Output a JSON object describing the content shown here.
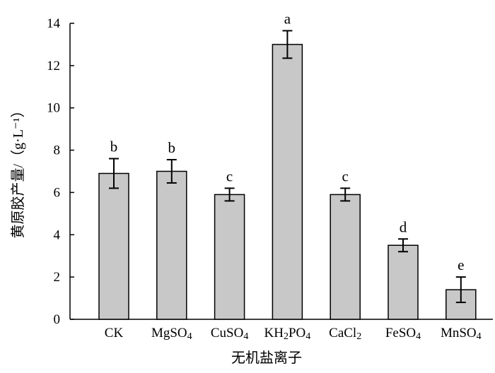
{
  "chart_data": {
    "type": "bar",
    "xlabel": "无机盐离子",
    "ylabel": "黄原胶产量/（g·L⁻¹）",
    "ylim": [
      0,
      14
    ],
    "yticks": [
      0,
      2,
      4,
      6,
      8,
      10,
      12,
      14
    ],
    "categories": [
      "CK",
      "MgSO4",
      "CuSO4",
      "KH2PO4",
      "CaCl2",
      "FeSO4",
      "MnSO4"
    ],
    "category_display": [
      {
        "main": "CK",
        "sub": ""
      },
      {
        "main": "MgSO",
        "sub": "4"
      },
      {
        "main": "CuSO",
        "sub": "4"
      },
      {
        "main": "KH",
        "sub": "2",
        "rest": "PO",
        "sub2": "4"
      },
      {
        "main": "CaCl",
        "sub": "2"
      },
      {
        "main": "FeSO",
        "sub": "4"
      },
      {
        "main": "MnSO",
        "sub": "4"
      }
    ],
    "values": [
      6.9,
      7.0,
      5.9,
      13.0,
      5.9,
      3.5,
      1.4
    ],
    "errors": [
      0.7,
      0.55,
      0.3,
      0.65,
      0.3,
      0.3,
      0.6
    ],
    "significance_letters": [
      "b",
      "b",
      "c",
      "a",
      "c",
      "d",
      "e"
    ],
    "bar_color": "#c8c8c8",
    "grid": false
  }
}
